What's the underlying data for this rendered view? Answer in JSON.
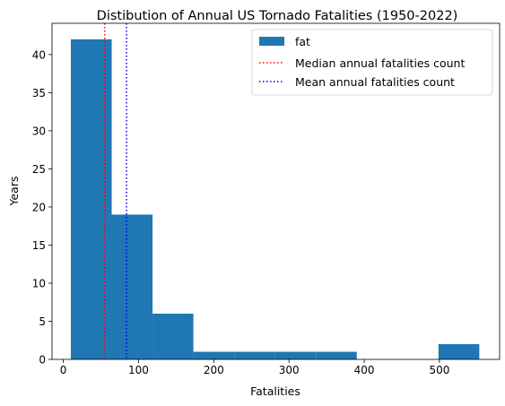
{
  "chart_data": {
    "type": "bar",
    "title": "Distibution of Annual US Tornado Fatalities (1950-2022)",
    "xlabel": "Fatalities",
    "ylabel": "Years",
    "xlim": [
      -15,
      580
    ],
    "ylim": [
      0,
      44.1
    ],
    "xticks": [
      0,
      100,
      200,
      300,
      400,
      500
    ],
    "yticks": [
      0,
      5,
      10,
      15,
      20,
      25,
      30,
      35,
      40
    ],
    "grid": false,
    "legend_position": "top-right",
    "bins": [
      {
        "x0": 10,
        "x1": 64.3,
        "count": 42
      },
      {
        "x0": 64.3,
        "x1": 118.6,
        "count": 19
      },
      {
        "x0": 118.6,
        "x1": 172.9,
        "count": 6
      },
      {
        "x0": 172.9,
        "x1": 227.2,
        "count": 1
      },
      {
        "x0": 227.2,
        "x1": 281.5,
        "count": 1
      },
      {
        "x0": 281.5,
        "x1": 335.8,
        "count": 1
      },
      {
        "x0": 335.8,
        "x1": 390.1,
        "count": 1
      },
      {
        "x0": 390.1,
        "x1": 444.4,
        "count": 0
      },
      {
        "x0": 444.4,
        "x1": 498.7,
        "count": 0
      },
      {
        "x0": 498.7,
        "x1": 553,
        "count": 2
      }
    ],
    "bar_color": "#1f77b4",
    "series": [
      {
        "name": "fat",
        "kind": "histogram",
        "color": "#1f77b4"
      }
    ],
    "vlines": [
      {
        "name": "Median annual fatalities count",
        "value": 55,
        "color": "#ff0000",
        "style": "dotted"
      },
      {
        "name": "Mean annual fatalities count",
        "value": 84,
        "color": "#0000ff",
        "style": "dotted"
      }
    ]
  }
}
